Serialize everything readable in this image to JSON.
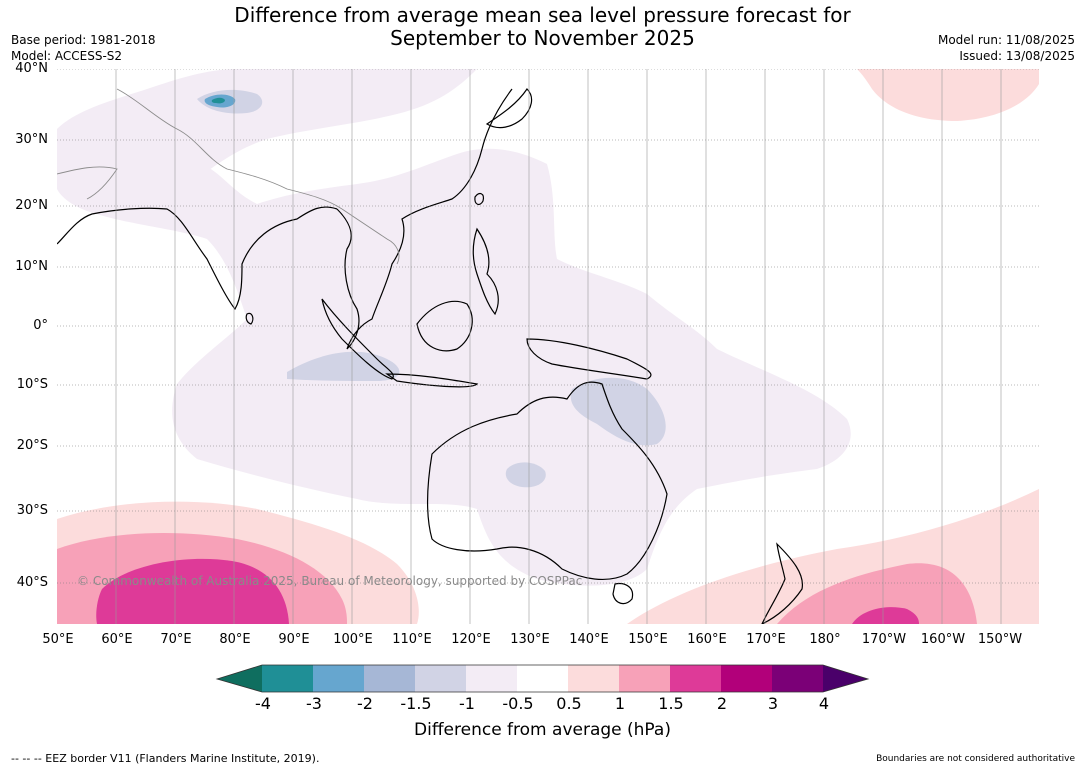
{
  "title_line1": "Difference from average mean sea level pressure forecast for",
  "title_line2": "September to November 2025",
  "base_period": "Base period: 1981-2018",
  "model": "Model: ACCESS-S2",
  "model_run": "Model run: 11/08/2025",
  "issued": "Issued: 13/08/2025",
  "copyright": "© Commonwealth of Australia 2025, Bureau of Meteorology, supported by COSPPac",
  "footer_left": "--  --  -- EEZ border V11 (Flanders Marine Institute, 2019).",
  "footer_right": "Boundaries are not considered authoritative",
  "lat_labels": [
    "40°N",
    "30°N",
    "20°N",
    "10°N",
    "0°",
    "10°S",
    "20°S",
    "30°S",
    "40°S"
  ],
  "lon_labels": [
    "50°E",
    "60°E",
    "70°E",
    "80°E",
    "90°E",
    "100°E",
    "110°E",
    "120°E",
    "130°E",
    "140°E",
    "150°E",
    "160°E",
    "170°E",
    "180°",
    "170°W",
    "160°W",
    "150°W"
  ],
  "colorbar": {
    "label": "Difference from average (hPa)",
    "tick_labels": [
      "-4",
      "-3",
      "-2",
      "-1.5",
      "-1",
      "-0.5",
      "0.5",
      "1",
      "1.5",
      "2",
      "3",
      "4"
    ],
    "colors": [
      "#0f6e5f",
      "#1f8f96",
      "#66a6cf",
      "#a6b7d6",
      "#d1d3e5",
      "#f3ecf5",
      "#ffffff",
      "#fcdcdc",
      "#f7a1b8",
      "#de3a98",
      "#b2007a",
      "#7b0077",
      "#4a006a"
    ]
  },
  "colors": {
    "land_outline": "#000000",
    "border": "#8c8c8c",
    "grid": "#777777"
  }
}
